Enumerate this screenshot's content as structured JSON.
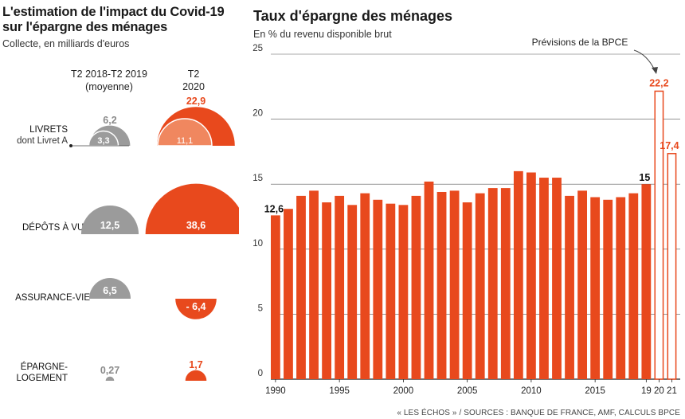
{
  "left": {
    "title_line1": "L'estimation de l'impact du Covid-19",
    "title_line2": "sur l'épargne des ménages",
    "subtitle": "Collecte, en milliards d'euros",
    "col1_line1": "T2 2018-T2 2019",
    "col1_line2": "(moyenne)",
    "col2_line1": "T2",
    "col2_line2": "2020",
    "colors": {
      "gray": "#9b9b9b",
      "orange": "#e8491d",
      "light_orange": "#f0875f"
    }
  },
  "right": {
    "title": "Taux d'épargne des ménages",
    "subtitle": "En % du revenu disponible brut",
    "annotation": "Prévisions de la BPCE"
  },
  "footer": "« LES ÉCHOS » / SOURCES : BANQUE DE FRANCE, AMF, CALCULS BPCE",
  "chart_data": [
    {
      "type": "semicircle",
      "categories": [
        "LIVRETS",
        "dont Livret A",
        "DÉPÔTS À VUE",
        "ASSURANCE-VIE",
        "ÉPARGNE-LOGEMENT"
      ],
      "category_labels": {
        "livrets": "LIVRETS",
        "livret_a": "dont Livret A",
        "depots": "DÉPÔTS À VUE",
        "assurance": "ASSURANCE-VIE",
        "epargne_l1": "ÉPARGNE-",
        "epargne_l2": "LOGEMENT"
      },
      "series": [
        {
          "name": "T2 2018-T2 2019 (moyenne)",
          "values": [
            6.2,
            3.3,
            12.5,
            6.5,
            0.27
          ],
          "labels": [
            "6,2",
            "3,3",
            "12,5",
            "6,5",
            "0,27"
          ]
        },
        {
          "name": "T2 2020",
          "values": [
            22.9,
            11.1,
            38.6,
            -6.4,
            1.7
          ],
          "labels": [
            "22,9",
            "11,1",
            "38,6",
            "- 6,4",
            "1,7"
          ]
        }
      ]
    },
    {
      "type": "bar",
      "title": "Taux d'épargne des ménages",
      "ylabel": "En % du revenu disponible brut",
      "ylim": [
        0,
        25
      ],
      "yticks": [
        0,
        5,
        10,
        15,
        20,
        25
      ],
      "ytick_labels": [
        "0",
        "5",
        "10",
        "15",
        "20",
        "25"
      ],
      "grid": true,
      "x": [
        1990,
        1991,
        1992,
        1993,
        1994,
        1995,
        1996,
        1997,
        1998,
        1999,
        2000,
        2001,
        2002,
        2003,
        2004,
        2005,
        2006,
        2007,
        2008,
        2009,
        2010,
        2011,
        2012,
        2013,
        2014,
        2015,
        2016,
        2017,
        2018,
        2019
      ],
      "values": [
        12.6,
        13.1,
        14.1,
        14.5,
        13.6,
        14.1,
        13.4,
        14.3,
        13.8,
        13.5,
        13.4,
        14.1,
        15.2,
        14.4,
        14.5,
        13.6,
        14.3,
        14.7,
        14.7,
        16.0,
        15.9,
        15.5,
        15.5,
        14.1,
        14.5,
        14.0,
        13.8,
        14.0,
        14.3,
        15.0
      ],
      "forecast_x": [
        2020,
        2021
      ],
      "forecast_values": [
        22.2,
        17.4
      ],
      "xtick_labels": [
        "1990",
        "1995",
        "2000",
        "2005",
        "2010",
        "2015",
        "19",
        "20",
        "21"
      ],
      "data_labels": {
        "first": "12,6",
        "y2019": "15",
        "y2020": "22,2",
        "y2021": "17,4"
      }
    }
  ]
}
